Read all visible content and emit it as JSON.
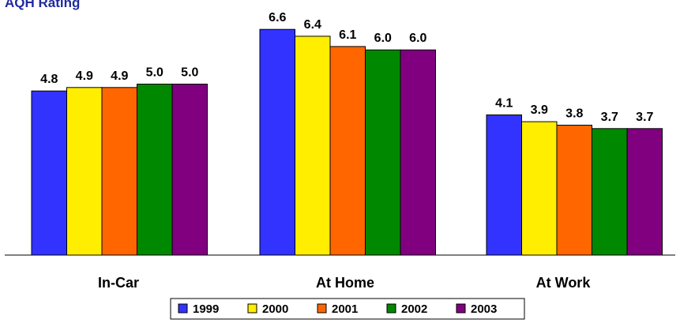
{
  "chart_data": {
    "type": "bar",
    "title": "AQH Rating",
    "categories": [
      "In-Car",
      "At Home",
      "At Work"
    ],
    "series": [
      {
        "name": "1999",
        "color": "#3333ff",
        "values": [
          4.8,
          6.6,
          4.1
        ]
      },
      {
        "name": "2000",
        "color": "#ffee00",
        "values": [
          4.9,
          6.4,
          3.9
        ]
      },
      {
        "name": "2001",
        "color": "#ff6600",
        "values": [
          4.9,
          6.1,
          3.8
        ]
      },
      {
        "name": "2002",
        "color": "#008800",
        "values": [
          5.0,
          6.0,
          3.7
        ]
      },
      {
        "name": "2003",
        "color": "#800080",
        "values": [
          5.0,
          6.0,
          3.7
        ]
      }
    ],
    "data_labels": [
      [
        "4.8",
        "6.6",
        "4.1"
      ],
      [
        "4.9",
        "6.4",
        "3.9"
      ],
      [
        "4.9",
        "6.1",
        "3.8"
      ],
      [
        "5.0",
        "6.0",
        "3.7"
      ],
      [
        "5.0",
        "6.0",
        "3.7"
      ]
    ],
    "ylim": [
      0,
      7
    ],
    "grid": false,
    "legend": "bottom"
  }
}
